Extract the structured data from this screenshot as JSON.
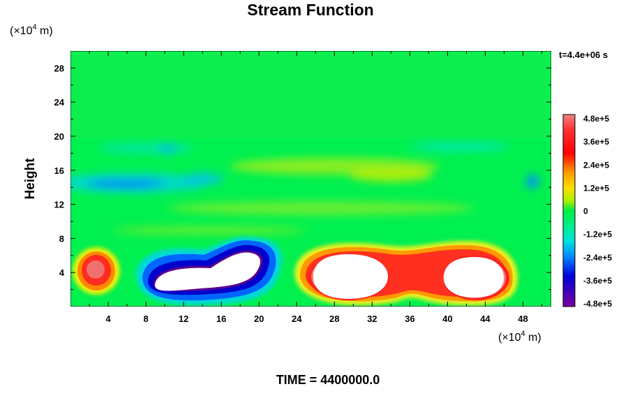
{
  "chart_data": {
    "type": "heatmap",
    "title": "Stream Function",
    "ylabel": "Height",
    "x_unit_prefix": "(×10",
    "x_unit_exp": "4",
    "x_unit_suffix": " m)",
    "y_unit_prefix": "(×10",
    "y_unit_exp": "4",
    "y_unit_suffix": " m)",
    "xlim": [
      0,
      51
    ],
    "ylim": [
      0,
      30
    ],
    "xticks": [
      4,
      8,
      12,
      16,
      20,
      24,
      28,
      32,
      36,
      40,
      44,
      48
    ],
    "yticks": [
      4,
      8,
      12,
      16,
      20,
      24,
      28
    ],
    "time_label": "t=4.4e+06 s",
    "colorbar": {
      "range": [
        -480000,
        480000
      ],
      "ticks": [
        "4.8e+5",
        "3.6e+5",
        "2.4e+5",
        "1.2e+5",
        "0",
        "-1.2e+5",
        "-2.4e+5",
        "-3.6e+5",
        "-4.8e+5"
      ]
    },
    "features": [
      {
        "name": "positive-vortex-left",
        "x": 3,
        "y": 4.5,
        "value": 450000
      },
      {
        "name": "negative-vortex",
        "x": 14,
        "y": 3.5,
        "value": -480000,
        "saturated": true
      },
      {
        "name": "positive-vortex-center",
        "x": 29.5,
        "y": 3.5,
        "value": 480000,
        "saturated": true
      },
      {
        "name": "positive-vortex-right",
        "x": 42,
        "y": 3.5,
        "value": 480000,
        "saturated": true
      },
      {
        "name": "negative-band",
        "x": 10,
        "y": 15,
        "value": -150000
      }
    ],
    "grid": false,
    "legend": "right"
  },
  "footer": {
    "text": "TIME = 4400000.0"
  }
}
